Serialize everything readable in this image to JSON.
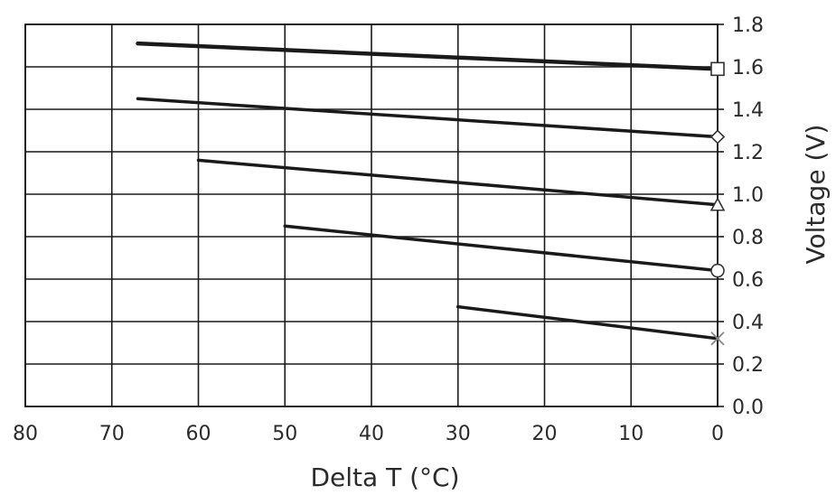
{
  "chart_data": {
    "type": "line",
    "title": "",
    "xlabel": "Delta T (°C)",
    "ylabel": "Voltage (V)",
    "x_reversed": true,
    "xlim": [
      80,
      0
    ],
    "ylim": [
      0.0,
      1.8
    ],
    "xticks": [
      80,
      70,
      60,
      50,
      40,
      30,
      20,
      10,
      0
    ],
    "yticks": [
      "0.0",
      "0.2",
      "0.4",
      "0.6",
      "0.8",
      "1.0",
      "1.2",
      "1.4",
      "1.6",
      "1.8"
    ],
    "y_axis_side": "right",
    "grid": true,
    "legend": "none",
    "series": [
      {
        "marker": "square",
        "x": [
          67,
          0
        ],
        "y": [
          1.71,
          1.59
        ],
        "stroke": 4.5
      },
      {
        "marker": "diamond",
        "x": [
          67,
          0
        ],
        "y": [
          1.45,
          1.27
        ],
        "stroke": 3.5
      },
      {
        "marker": "triangle",
        "x": [
          60,
          0
        ],
        "y": [
          1.16,
          0.95
        ],
        "stroke": 3.5
      },
      {
        "marker": "circle",
        "x": [
          50,
          0
        ],
        "y": [
          0.85,
          0.64
        ],
        "stroke": 3.5
      },
      {
        "marker": "x",
        "x": [
          30,
          0
        ],
        "y": [
          0.47,
          0.32
        ],
        "stroke": 3.5
      }
    ],
    "colors": {
      "line": "#1a1a1a",
      "grid": "#1a1a1a",
      "marker_fill": "#ffffff",
      "x_marker": "#888888"
    }
  }
}
